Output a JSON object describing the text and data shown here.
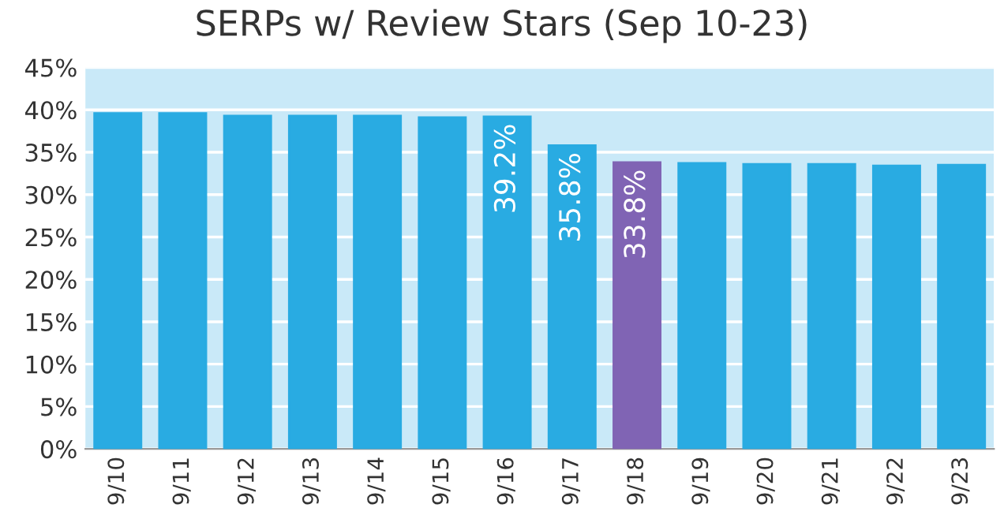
{
  "chart_data": {
    "type": "bar",
    "title": "SERPs w/ Review Stars (Sep 10-23)",
    "categories": [
      "9/10",
      "9/11",
      "9/12",
      "9/13",
      "9/14",
      "9/15",
      "9/16",
      "9/17",
      "9/18",
      "9/19",
      "9/20",
      "9/21",
      "9/22",
      "9/23"
    ],
    "values": [
      39.6,
      39.6,
      39.3,
      39.3,
      39.3,
      39.1,
      39.2,
      35.8,
      33.8,
      33.7,
      33.6,
      33.6,
      33.4,
      33.5
    ],
    "colors": [
      "#29abe2",
      "#29abe2",
      "#29abe2",
      "#29abe2",
      "#29abe2",
      "#29abe2",
      "#29abe2",
      "#29abe2",
      "#8064b4",
      "#29abe2",
      "#29abe2",
      "#29abe2",
      "#29abe2",
      "#29abe2"
    ],
    "value_labels": [
      null,
      null,
      null,
      null,
      null,
      null,
      "39.2%",
      "35.8%",
      "33.8%",
      null,
      null,
      null,
      null,
      null
    ],
    "ylim": [
      0,
      45
    ],
    "yticks": [
      {
        "value": 0,
        "label": "0%"
      },
      {
        "value": 5,
        "label": "5%"
      },
      {
        "value": 10,
        "label": "10%"
      },
      {
        "value": 15,
        "label": "15%"
      },
      {
        "value": 20,
        "label": "20%"
      },
      {
        "value": 25,
        "label": "25%"
      },
      {
        "value": 30,
        "label": "30%"
      },
      {
        "value": 35,
        "label": "35%"
      },
      {
        "value": 40,
        "label": "40%"
      },
      {
        "value": 45,
        "label": "45%"
      }
    ],
    "bands": [
      {
        "axis": "y",
        "from": 0,
        "to": 45,
        "color": "#c9e9f8"
      }
    ],
    "grid": "y"
  }
}
